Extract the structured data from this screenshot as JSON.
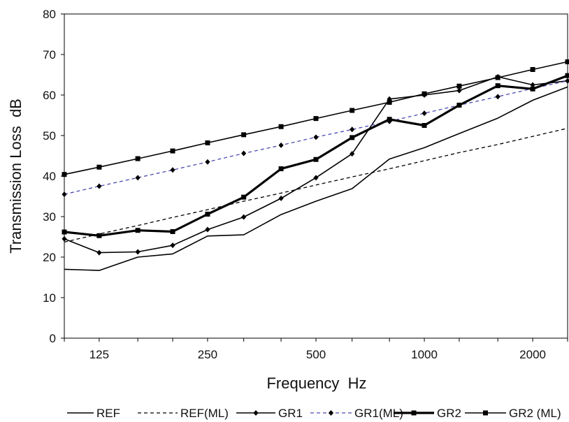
{
  "chart_data": {
    "type": "line",
    "title": "",
    "xlabel": "Frequency  Hz",
    "ylabel": "Transmission Loss  dB",
    "x_scale": "log",
    "x_ticks": [
      "125",
      "250",
      "500",
      "1000",
      "2000"
    ],
    "x_tick_values": [
      125,
      250,
      500,
      1000,
      2000
    ],
    "y_ticks": [
      "0",
      "10",
      "20",
      "30",
      "40",
      "50",
      "60",
      "70",
      "80"
    ],
    "ylim": [
      0,
      80
    ],
    "x": [
      100,
      125,
      160,
      200,
      250,
      315,
      400,
      500,
      630,
      800,
      1000,
      1250,
      1600,
      2000,
      2500
    ],
    "grid": false,
    "legend_position": "bottom",
    "series": [
      {
        "name": "REF",
        "style": "solid-thin",
        "marker": "none",
        "values": [
          17.0,
          16.7,
          20.0,
          20.8,
          25.2,
          25.5,
          30.5,
          33.8,
          36.9,
          44.2,
          47.0,
          50.5,
          54.3,
          58.7,
          62.0
        ]
      },
      {
        "name": "REF(ML)",
        "style": "dashed",
        "marker": "none",
        "values": [
          23.7,
          25.7,
          27.8,
          29.8,
          31.7,
          33.8,
          35.8,
          37.8,
          39.8,
          41.8,
          43.8,
          45.8,
          47.8,
          49.8,
          51.8
        ]
      },
      {
        "name": "GR1",
        "style": "solid-thin",
        "marker": "diamond",
        "values": [
          24.5,
          21.1,
          21.3,
          22.9,
          26.8,
          29.9,
          34.5,
          39.6,
          45.5,
          59.0,
          60.0,
          61.1,
          64.5,
          62.5,
          63.5
        ]
      },
      {
        "name": "GR1(ML)",
        "style": "dashed-blue",
        "marker": "diamond",
        "values": [
          35.5,
          37.5,
          39.6,
          41.5,
          43.5,
          45.6,
          47.6,
          49.6,
          51.5,
          53.5,
          55.5,
          57.5,
          59.6,
          61.6,
          63.5
        ]
      },
      {
        "name": "GR2",
        "style": "solid-thick",
        "marker": "square",
        "values": [
          26.2,
          25.3,
          26.6,
          26.3,
          30.6,
          34.8,
          41.8,
          44.1,
          49.5,
          54.0,
          52.5,
          57.5,
          62.3,
          61.5,
          64.8
        ]
      },
      {
        "name": "GR2 (ML)",
        "style": "solid-thin",
        "marker": "square",
        "values": [
          40.4,
          42.2,
          44.3,
          46.2,
          48.2,
          50.2,
          52.2,
          54.2,
          56.2,
          58.2,
          60.3,
          62.2,
          64.3,
          66.3,
          68.2
        ]
      }
    ],
    "colors": {
      "line": "#000000",
      "dashed_blue": "#4b4bb0"
    }
  }
}
